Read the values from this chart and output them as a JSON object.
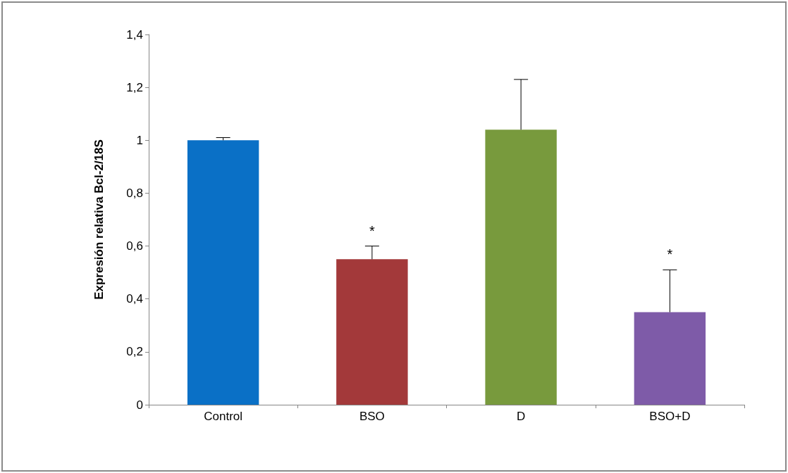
{
  "chart_data": {
    "type": "bar",
    "ylabel": "Expresión relativa Bcl-2/18S",
    "categories": [
      "Control",
      "BSO",
      "D",
      "BSO+D"
    ],
    "values": [
      1.0,
      0.55,
      1.04,
      0.35
    ],
    "colors": [
      "#0a70c6",
      "#a3393a",
      "#789a3d",
      "#7e5ba8"
    ],
    "errors": [
      [
        1.0,
        1.01
      ],
      [
        0.55,
        0.6
      ],
      [
        1.04,
        1.23
      ],
      [
        0.35,
        0.51
      ]
    ],
    "ylim": [
      0,
      1.4
    ],
    "yticks": [
      0,
      {
        "value": 0.2,
        "label": "0,2"
      },
      {
        "value": 0.4,
        "label": "0,4"
      },
      {
        "value": 0.6,
        "label": "0,6"
      },
      {
        "value": 0.8,
        "label": "0,8"
      },
      1,
      {
        "value": 1.2,
        "label": "1,2"
      },
      {
        "value": 1.4,
        "label": "1,4"
      }
    ],
    "annotations": [
      {
        "text": "*",
        "x": "BSO",
        "y": 0.6
      },
      {
        "text": "*",
        "x": "BSO+D",
        "y": 0.51
      }
    ],
    "grid": false
  }
}
